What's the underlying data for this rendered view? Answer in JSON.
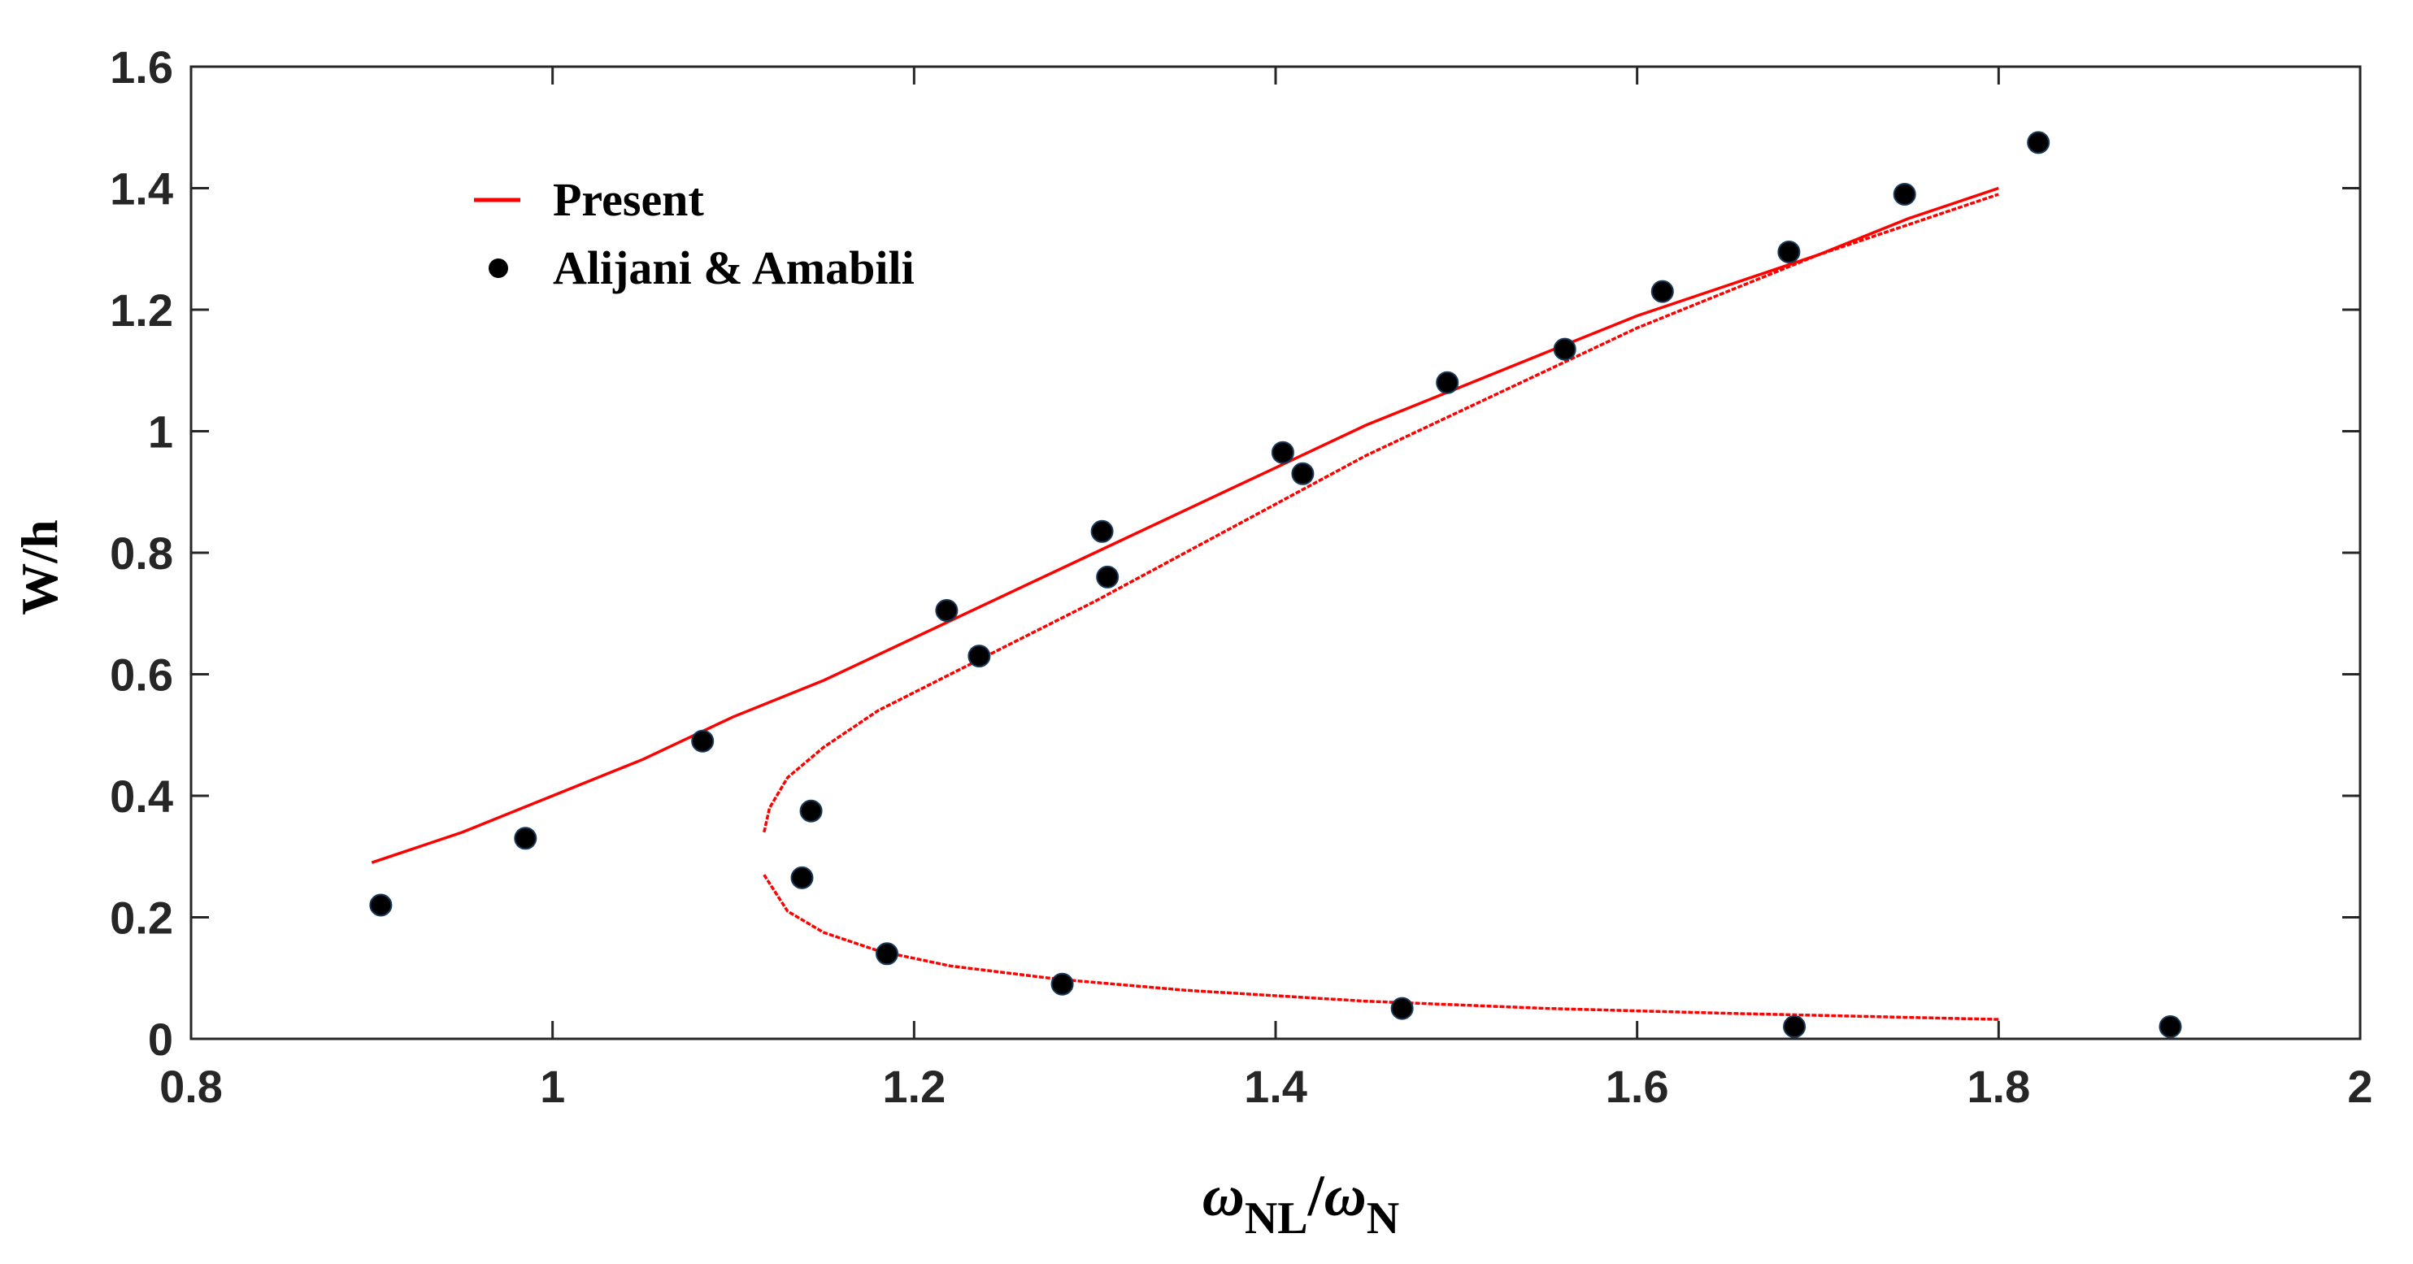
{
  "chart_data": {
    "type": "line",
    "title": "",
    "xlabel": {
      "symbol": "ω",
      "sub1": "NL",
      "slash": "/",
      "sub2": "N"
    },
    "ylabel": "W/h",
    "xlim": [
      0.8,
      2
    ],
    "ylim": [
      0,
      1.6
    ],
    "x_ticks": [
      "0.8",
      "1",
      "1.2",
      "1.4",
      "1.6",
      "1.8",
      "2"
    ],
    "y_ticks": [
      "0",
      "0.2",
      "0.4",
      "0.6",
      "0.8",
      "1",
      "1.2",
      "1.4",
      "1.6"
    ],
    "grid": false,
    "legend_position": "top-left",
    "series": [
      {
        "name": "Present",
        "kind": "line",
        "color": "#ff0000",
        "branches": [
          {
            "name": "upper",
            "x": [
              0.9,
              0.95,
              1.0,
              1.05,
              1.1,
              1.15,
              1.2,
              1.25,
              1.3,
              1.35,
              1.4,
              1.45,
              1.5,
              1.55,
              1.6,
              1.65,
              1.7,
              1.75,
              1.8
            ],
            "y": [
              0.29,
              0.34,
              0.4,
              0.46,
              0.53,
              0.59,
              0.66,
              0.73,
              0.8,
              0.87,
              0.94,
              1.01,
              1.07,
              1.13,
              1.19,
              1.24,
              1.29,
              1.35,
              1.4
            ]
          },
          {
            "name": "middle",
            "x": [
              1.117,
              1.12,
              1.13,
              1.15,
              1.18,
              1.22,
              1.26,
              1.3,
              1.35,
              1.4,
              1.45,
              1.5,
              1.55,
              1.6,
              1.65,
              1.7,
              1.75,
              1.8
            ],
            "y": [
              0.34,
              0.38,
              0.43,
              0.48,
              0.54,
              0.6,
              0.66,
              0.72,
              0.8,
              0.88,
              0.96,
              1.03,
              1.1,
              1.17,
              1.23,
              1.29,
              1.34,
              1.39
            ]
          },
          {
            "name": "lower",
            "x": [
              1.117,
              1.13,
              1.15,
              1.18,
              1.22,
              1.28,
              1.35,
              1.45,
              1.55,
              1.65,
              1.8
            ],
            "y": [
              0.27,
              0.21,
              0.175,
              0.145,
              0.12,
              0.098,
              0.08,
              0.062,
              0.05,
              0.042,
              0.032
            ]
          }
        ]
      },
      {
        "name": "Alijani & Amabili",
        "kind": "scatter",
        "color": "#000000",
        "x": [
          0.905,
          0.985,
          1.083,
          1.143,
          1.138,
          1.185,
          1.218,
          1.236,
          1.282,
          1.304,
          1.307,
          1.404,
          1.415,
          1.47,
          1.495,
          1.56,
          1.614,
          1.684,
          1.687,
          1.748,
          1.822,
          1.895
        ],
        "y": [
          0.22,
          0.33,
          0.49,
          0.375,
          0.265,
          0.14,
          0.705,
          0.63,
          0.09,
          0.835,
          0.76,
          0.965,
          0.93,
          0.05,
          1.08,
          1.135,
          1.23,
          1.295,
          0.02,
          1.39,
          1.475,
          0.02
        ]
      }
    ]
  }
}
